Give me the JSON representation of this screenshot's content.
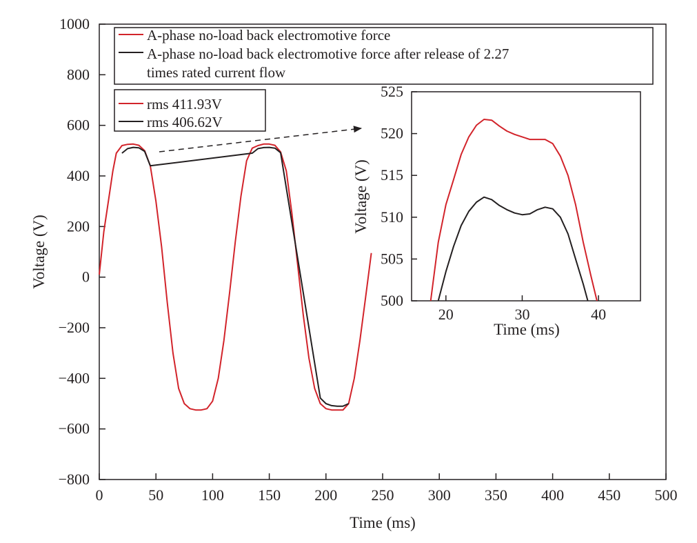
{
  "chart_data": [
    {
      "type": "line",
      "xlabel": "Time (ms)",
      "ylabel": "Voltage (V)",
      "xlim": [
        0,
        500
      ],
      "ylim": [
        -800,
        1000
      ],
      "xticks": [
        0,
        50,
        100,
        150,
        200,
        250,
        300,
        350,
        400,
        450,
        500
      ],
      "yticks": [
        -800,
        -600,
        -400,
        -200,
        0,
        200,
        400,
        600,
        800,
        1000
      ],
      "grid": false,
      "legend_placement": "top",
      "legend_entries": [
        {
          "label": "A-phase no-load back electromotive force",
          "color": "#d2232a"
        },
        {
          "label": "A-phase no-load back electromotive force after release of 2.27",
          "label_line2": "times rated current flow",
          "color": "#231f20"
        }
      ],
      "rms_entries": [
        {
          "label": "rms 411.93V",
          "color": "#d2232a"
        },
        {
          "label": "rms 406.62V",
          "color": "#231f20"
        }
      ],
      "series": [
        {
          "color": "#d2232a",
          "x": [
            0,
            4,
            8,
            12,
            15,
            20,
            25,
            30,
            35,
            40,
            45,
            50,
            55,
            60,
            65,
            70,
            75,
            80,
            85,
            90,
            95,
            100,
            105,
            110,
            115,
            120,
            125,
            130,
            135,
            140,
            145,
            150,
            155,
            160,
            165,
            170,
            175,
            180,
            185,
            190,
            195,
            200,
            205,
            210,
            215,
            220,
            225,
            230,
            235,
            240
          ],
          "y": [
            10,
            180,
            300,
            420,
            490,
            520,
            525,
            526,
            521,
            500,
            440,
            300,
            120,
            -100,
            -300,
            -440,
            -500,
            -520,
            -525,
            -525,
            -520,
            -490,
            -400,
            -250,
            -60,
            140,
            320,
            460,
            510,
            520,
            526,
            526,
            521,
            495,
            420,
            250,
            50,
            -150,
            -320,
            -440,
            -500,
            -520,
            -525,
            -525,
            -525,
            -500,
            -400,
            -250,
            -80,
            95
          ]
        },
        {
          "color": "#231f20",
          "x": [
            20,
            25,
            30,
            35,
            40,
            45,
            135,
            140,
            145,
            150,
            155,
            160,
            195,
            200,
            205,
            210,
            215,
            220
          ],
          "y": [
            490,
            508,
            513,
            511,
            497,
            440,
            490,
            508,
            512,
            513,
            510,
            492,
            -478,
            -500,
            -508,
            -510,
            -510,
            -500
          ]
        }
      ]
    },
    {
      "type": "line",
      "xlabel": "Time (ms)",
      "ylabel": "Voltage (V)",
      "xlim": [
        15.5,
        45.5
      ],
      "ylim": [
        500,
        525
      ],
      "xticks": [
        20,
        30,
        40
      ],
      "yticks": [
        500,
        505,
        510,
        515,
        520,
        525
      ],
      "grid": false,
      "series": [
        {
          "color": "#d2232a",
          "x": [
            18,
            19,
            20,
            21,
            22,
            23,
            24,
            25,
            26,
            27,
            28,
            29,
            30,
            31,
            32,
            33,
            34,
            35,
            36,
            37,
            38,
            39,
            39.8
          ],
          "y": [
            500,
            507,
            511.5,
            514.5,
            517.5,
            519.6,
            521,
            521.7,
            521.6,
            520.9,
            520.3,
            519.9,
            519.6,
            519.3,
            519.3,
            519.3,
            518.8,
            517.3,
            515,
            511.5,
            507,
            503,
            500
          ]
        },
        {
          "color": "#231f20",
          "x": [
            19,
            20,
            21,
            22,
            23,
            24,
            25,
            26,
            27,
            28,
            29,
            30,
            31,
            32,
            33,
            34,
            35,
            36,
            37,
            38,
            38.6
          ],
          "y": [
            500,
            503.5,
            506.5,
            509,
            510.7,
            511.8,
            512.4,
            512.1,
            511.4,
            510.9,
            510.5,
            510.3,
            510.4,
            510.9,
            511.2,
            511,
            510,
            508,
            505,
            502,
            500
          ]
        }
      ]
    }
  ]
}
